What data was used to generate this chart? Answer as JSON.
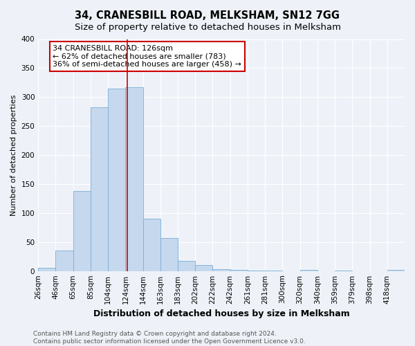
{
  "title": "34, CRANESBILL ROAD, MELKSHAM, SN12 7GG",
  "subtitle": "Size of property relative to detached houses in Melksham",
  "xlabel": "Distribution of detached houses by size in Melksham",
  "ylabel": "Number of detached properties",
  "bin_labels": [
    "26sqm",
    "46sqm",
    "65sqm",
    "85sqm",
    "104sqm",
    "124sqm",
    "144sqm",
    "163sqm",
    "183sqm",
    "202sqm",
    "222sqm",
    "242sqm",
    "261sqm",
    "281sqm",
    "300sqm",
    "320sqm",
    "340sqm",
    "359sqm",
    "379sqm",
    "398sqm",
    "418sqm"
  ],
  "bar_heights": [
    5,
    35,
    138,
    283,
    315,
    317,
    90,
    57,
    18,
    10,
    3,
    2,
    1,
    1,
    0,
    2,
    0,
    1,
    0,
    0,
    2
  ],
  "bar_color": "#c5d8ee",
  "bar_edge_color": "#7aafd4",
  "subject_bar_index": 5,
  "subject_line_color": "#cc0000",
  "annotation_line1": "34 CRANESBILL ROAD: 126sqm",
  "annotation_line2": "← 62% of detached houses are smaller (783)",
  "annotation_line3": "36% of semi-detached houses are larger (458) →",
  "annotation_box_color": "#cc0000",
  "ylim": [
    0,
    400
  ],
  "yticks": [
    0,
    50,
    100,
    150,
    200,
    250,
    300,
    350,
    400
  ],
  "footer_line1": "Contains HM Land Registry data © Crown copyright and database right 2024.",
  "footer_line2": "Contains public sector information licensed under the Open Government Licence v3.0.",
  "fig_bg_color": "#eef2f8",
  "plot_bg_color": "#eef2f8",
  "grid_color": "#ffffff",
  "title_fontsize": 10.5,
  "subtitle_fontsize": 9.5,
  "xlabel_fontsize": 9,
  "ylabel_fontsize": 8,
  "tick_fontsize": 7.5,
  "annotation_fontsize": 8,
  "footer_fontsize": 6.5
}
